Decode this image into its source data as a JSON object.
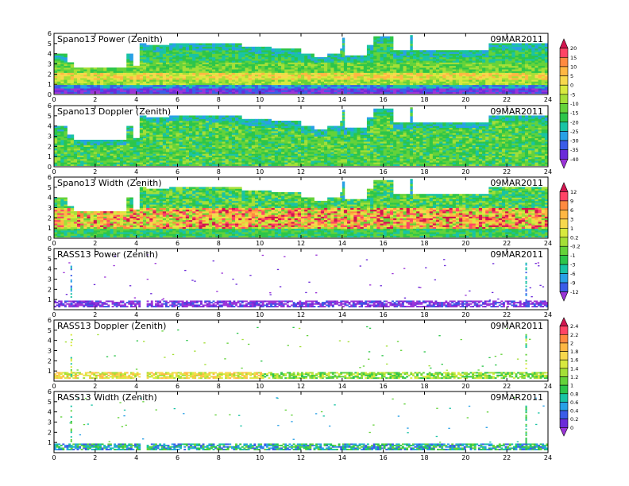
{
  "date": "09MAR2011",
  "x_ticks": [
    "0",
    "2",
    "4",
    "6",
    "8",
    "10",
    "12",
    "14",
    "16",
    "18",
    "20",
    "22",
    "24"
  ],
  "colorbars": [
    {
      "labels": [
        "20",
        "15",
        "10",
        "5",
        "0",
        "-5",
        "-10",
        "-15",
        "-20",
        "-25",
        "-30",
        "-35",
        "-40"
      ],
      "colors": [
        "#d2154f",
        "#ff4466",
        "#ff8a40",
        "#ffb743",
        "#f7d84d",
        "#d8e93e",
        "#a4df37",
        "#64d23a",
        "#2cc54a",
        "#19c3a4",
        "#29a0e6",
        "#3a5ce8",
        "#6b2ad9",
        "#9b34d8"
      ]
    },
    {
      "labels": [
        "12",
        "9",
        "6",
        "3",
        "1",
        "0.2",
        "-0.2",
        "-1",
        "-3",
        "-6",
        "-9",
        "-12"
      ],
      "colors": [
        "#d2154f",
        "#ff4466",
        "#ff8a40",
        "#ffb743",
        "#f7d84d",
        "#d8e93e",
        "#a4df37",
        "#64d23a",
        "#2cc54a",
        "#19c3a4",
        "#29a0e6",
        "#3a5ce8",
        "#9b34d8"
      ]
    },
    {
      "labels": [
        "2.4",
        "2.2",
        "2",
        "1.8",
        "1.6",
        "1.4",
        "1.2",
        "1",
        "0.8",
        "0.6",
        "0.4",
        "0.2",
        "0"
      ],
      "colors": [
        "#d2154f",
        "#ff4466",
        "#ff8a40",
        "#ffb743",
        "#f7d84d",
        "#d8e93e",
        "#a4df37",
        "#64d23a",
        "#2cc54a",
        "#19c3a4",
        "#29a0e6",
        "#3a5ce8",
        "#6b2ad9",
        "#9b34d8"
      ]
    }
  ],
  "chart_data": [
    {
      "type": "heatmap",
      "title": "Spano13 Power (Zenith)",
      "xlim": [
        0,
        24
      ],
      "ylim": [
        0,
        6
      ],
      "y_ticks": [
        "0",
        "1",
        "2",
        "3",
        "4",
        "5",
        "6"
      ],
      "palette": "colorbar-1"
    },
    {
      "type": "heatmap",
      "title": "Spano13 Doppler (Zenith)",
      "xlim": [
        0,
        24
      ],
      "ylim": [
        0,
        6
      ],
      "y_ticks": [
        "0",
        "1",
        "2",
        "3",
        "4",
        "5",
        "6"
      ],
      "palette": "colorbar-1"
    },
    {
      "type": "heatmap",
      "title": "Spano13 Width (Zenith)",
      "xlim": [
        0,
        24
      ],
      "ylim": [
        0,
        6
      ],
      "y_ticks": [
        "0",
        "1",
        "2",
        "3",
        "4",
        "5",
        "6"
      ],
      "palette": "colorbar-2"
    },
    {
      "type": "heatmap",
      "title": "RASS13 Power (Zenith)",
      "xlim": [
        0,
        24
      ],
      "ylim": [
        0,
        6
      ],
      "y_ticks": [
        "1",
        "2",
        "3",
        "4",
        "5",
        "6"
      ],
      "palette": "colorbar-2"
    },
    {
      "type": "heatmap",
      "title": "RASS13 Doppler (Zenith)",
      "xlim": [
        0,
        24
      ],
      "ylim": [
        0,
        6
      ],
      "y_ticks": [
        "1",
        "2",
        "3",
        "4",
        "5",
        "6"
      ],
      "palette": "colorbar-3"
    },
    {
      "type": "heatmap",
      "title": "RASS13 Width (Zenith)",
      "xlim": [
        0,
        24
      ],
      "ylim": [
        0,
        6
      ],
      "y_ticks": [
        "1",
        "2",
        "3",
        "4",
        "5",
        "6"
      ],
      "palette": "colorbar-3"
    }
  ]
}
